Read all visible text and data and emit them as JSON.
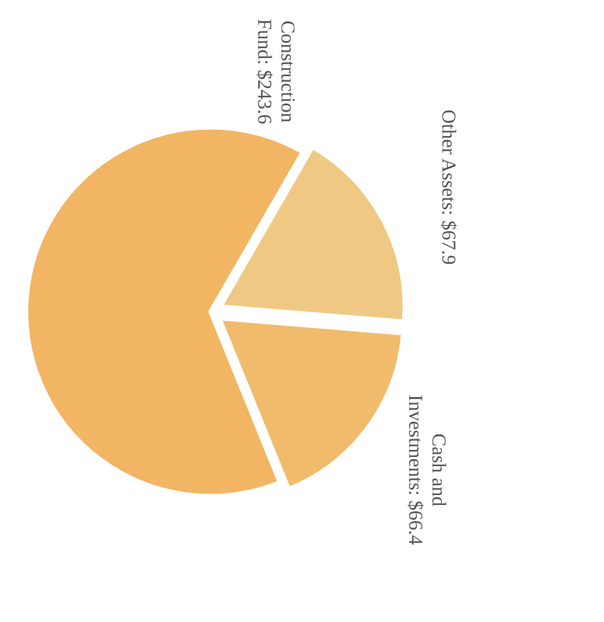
{
  "chart_data": {
    "type": "pie",
    "categories": [
      "Construction Fund",
      "Other Assets",
      "Cash and Investments"
    ],
    "values": [
      243.6,
      67.9,
      66.4
    ],
    "colors": [
      "#f2b563",
      "#efc983",
      "#f1bb6c"
    ],
    "value_labels": [
      "$243.6",
      "$67.9",
      "$66.4"
    ]
  }
}
